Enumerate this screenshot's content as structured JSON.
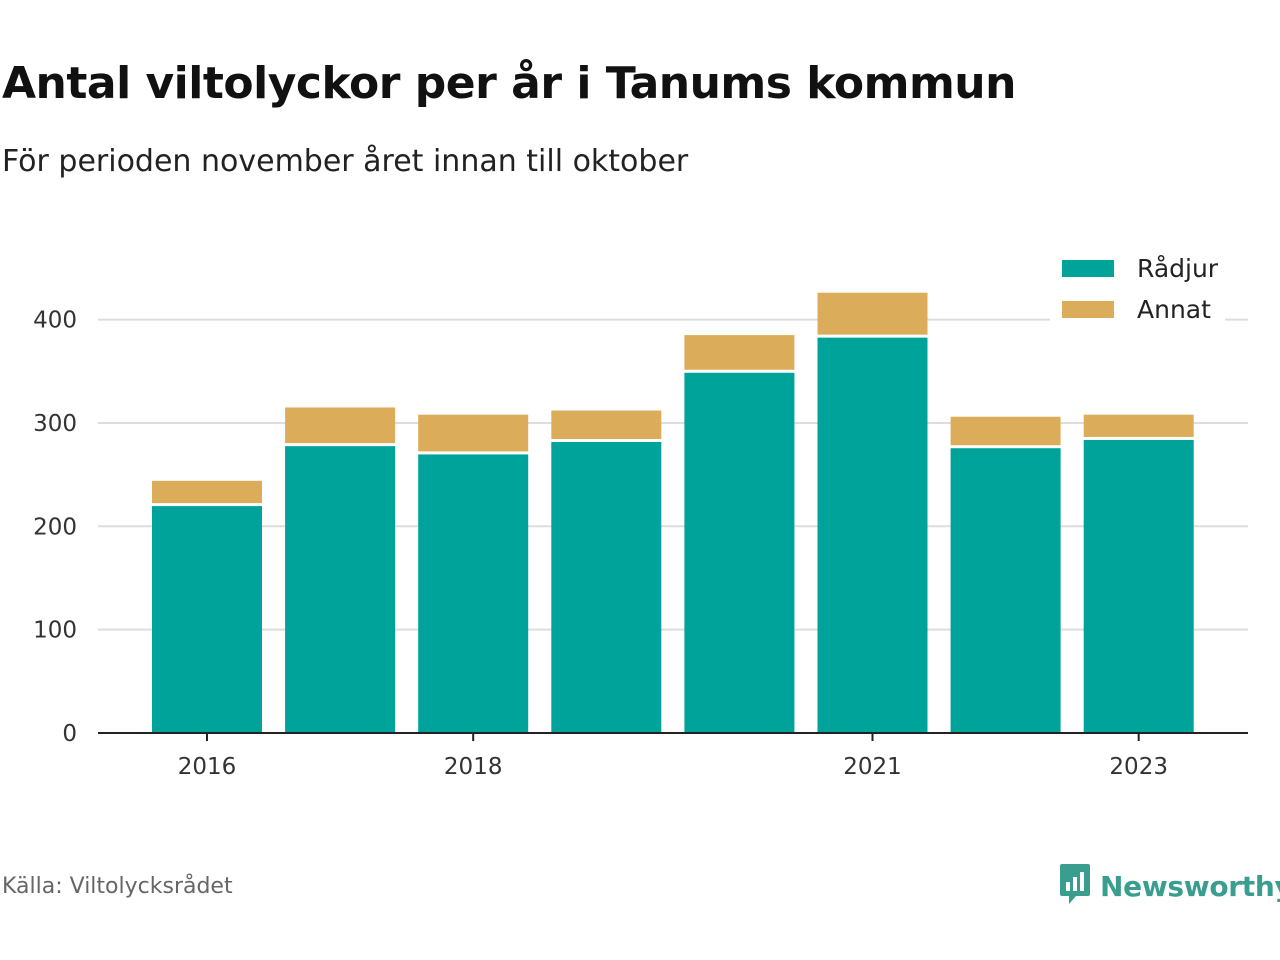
{
  "header": {
    "title": "Antal viltolyckor per år i Tanums kommun",
    "subtitle": "För perioden november året innan till oktober"
  },
  "footer": {
    "source": "Källa: Viltolycksrådet",
    "brand": "Newsworthy",
    "brand_icon": "bar-chart-speech-bubble-icon"
  },
  "colors": {
    "radjur": "#00a39a",
    "annat": "#dbad5a",
    "grid": "#dddddd",
    "axis": "#222222",
    "brand": "#3a9e8f"
  },
  "chart_data": {
    "type": "bar",
    "stacked": true,
    "categories": [
      "2016",
      "2017",
      "2018",
      "2019",
      "2020",
      "2021",
      "2022",
      "2023"
    ],
    "x_tick_labels": [
      "2016",
      "",
      "2018",
      "",
      "",
      "2021",
      "",
      "2023"
    ],
    "series": [
      {
        "name": "Rådjur",
        "values": [
          221,
          279,
          271,
          283,
          350,
          384,
          277,
          285
        ]
      },
      {
        "name": "Annat",
        "values": [
          23,
          36,
          37,
          29,
          35,
          42,
          29,
          23
        ]
      }
    ],
    "ylim": [
      0,
      450
    ],
    "yticks": [
      0,
      100,
      200,
      300,
      400
    ],
    "grid": true,
    "legend_position": "top-right",
    "xlabel": "",
    "ylabel": ""
  }
}
